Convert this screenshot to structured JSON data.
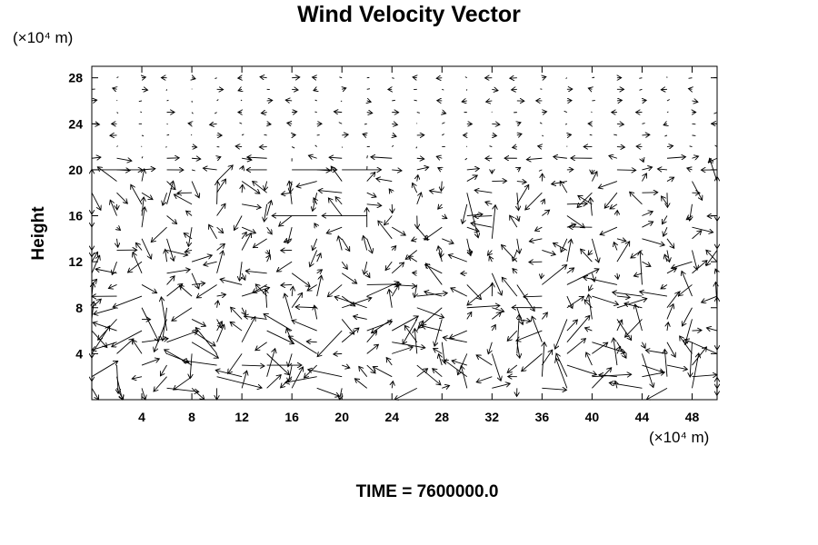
{
  "chart_data": {
    "type": "vector-field",
    "title": "Wind Velocity Vector",
    "ylabel": "Height",
    "xunit_label": "(×10⁴ m)",
    "yunit_label": "(×10⁴ m)",
    "xlim": [
      0,
      50
    ],
    "ylim": [
      0,
      29
    ],
    "xticks": [
      4,
      8,
      12,
      16,
      20,
      24,
      28,
      32,
      36,
      40,
      44,
      48
    ],
    "yticks": [
      4,
      8,
      12,
      16,
      20,
      24,
      28
    ],
    "grid": false,
    "grid_spacing": [
      2,
      1
    ],
    "vector_color": "#000000",
    "time_caption": "TIME = 7600000.0",
    "vectors_sample": [
      {
        "x": 0,
        "y": 20,
        "u": 4.5,
        "v": 0
      },
      {
        "x": 16,
        "y": 20,
        "u": 4.0,
        "v": 0
      },
      {
        "x": 20,
        "y": 20,
        "u": 3.5,
        "v": 0
      },
      {
        "x": 18,
        "y": 16,
        "u": -4.0,
        "v": 0
      },
      {
        "x": 22,
        "y": 16,
        "u": -4.0,
        "v": 0
      },
      {
        "x": 30,
        "y": 18,
        "u": 1.0,
        "v": -4.0
      },
      {
        "x": 32,
        "y": 14,
        "u": 0.3,
        "v": 3.0
      },
      {
        "x": 4,
        "y": 8,
        "u": 1.5,
        "v": -3.0
      },
      {
        "x": 6,
        "y": 6,
        "u": -0.5,
        "v": 3.0
      },
      {
        "x": 10,
        "y": 2,
        "u": 4.0,
        "v": -1.0
      },
      {
        "x": 34,
        "y": 4,
        "u": 0.2,
        "v": 3.5
      },
      {
        "x": 40,
        "y": 2,
        "u": 3.5,
        "v": 0.2
      },
      {
        "x": 44,
        "y": 4,
        "u": 1.0,
        "v": -3.0
      }
    ]
  }
}
